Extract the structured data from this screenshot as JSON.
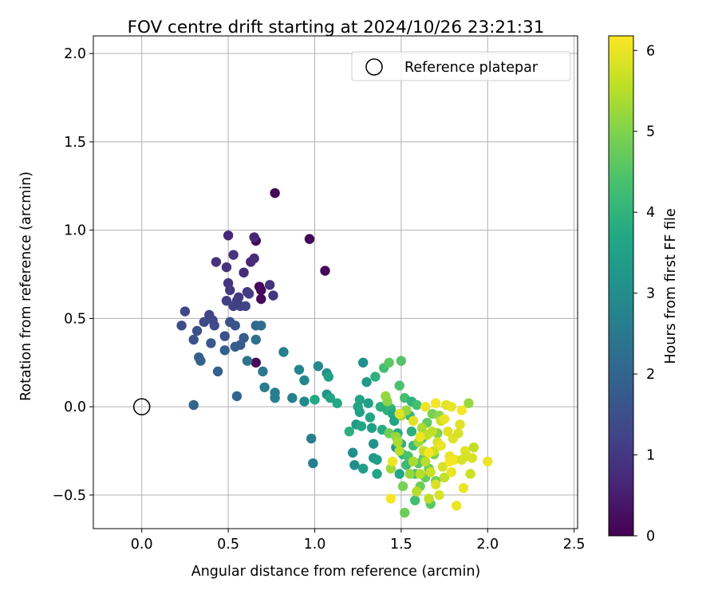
{
  "chart_data": {
    "type": "scatter",
    "title": "FOV centre drift starting at 2024/10/26 23:21:31",
    "xlabel": "Angular distance from reference (arcmin)",
    "ylabel": "Rotation from reference (arcmin)",
    "xlim": [
      -0.28,
      2.52
    ],
    "ylim": [
      -0.69,
      2.1
    ],
    "xticks": [
      0.0,
      0.5,
      1.0,
      1.5,
      2.0,
      2.5
    ],
    "xtick_labels": [
      "0.0",
      "0.5",
      "1.0",
      "1.5",
      "2.0",
      "2.5"
    ],
    "yticks": [
      -0.5,
      0.0,
      0.5,
      1.0,
      1.5,
      2.0
    ],
    "ytick_labels": [
      "−0.5",
      "0.0",
      "0.5",
      "1.0",
      "1.5",
      "2.0"
    ],
    "grid": true,
    "legend": {
      "placement": "top-right",
      "entries": [
        "Reference platepar"
      ]
    },
    "reference_point": {
      "x": 0.0,
      "y": 0.0,
      "marker": "open-circle"
    },
    "colorbar": {
      "label": "Hours from first FF file",
      "colormap": "viridis",
      "range": [
        0,
        6.18
      ],
      "ticks": [
        0,
        1,
        2,
        3,
        4,
        5,
        6
      ],
      "tick_labels": [
        "0",
        "1",
        "2",
        "3",
        "4",
        "5",
        "6"
      ]
    },
    "points": [
      [
        0.77,
        1.21,
        0.05
      ],
      [
        0.97,
        0.95,
        0.05
      ],
      [
        0.66,
        0.94,
        0.1
      ],
      [
        1.06,
        0.77,
        0.1
      ],
      [
        0.68,
        0.68,
        0.1
      ],
      [
        0.69,
        0.66,
        0.12
      ],
      [
        0.69,
        0.61,
        0.15
      ],
      [
        0.66,
        0.25,
        0.15
      ],
      [
        0.5,
        0.97,
        0.7
      ],
      [
        0.65,
        0.96,
        0.7
      ],
      [
        0.63,
        0.82,
        0.7
      ],
      [
        0.59,
        0.76,
        0.8
      ],
      [
        0.65,
        0.84,
        0.8
      ],
      [
        0.53,
        0.86,
        0.9
      ],
      [
        0.43,
        0.82,
        0.9
      ],
      [
        0.5,
        0.7,
        0.9
      ],
      [
        0.49,
        0.79,
        0.9
      ],
      [
        0.74,
        0.69,
        0.9
      ],
      [
        0.76,
        0.63,
        0.95
      ],
      [
        0.51,
        0.66,
        1.0
      ],
      [
        0.56,
        0.62,
        1.0
      ],
      [
        0.61,
        0.65,
        1.05
      ],
      [
        0.55,
        0.6,
        1.1
      ],
      [
        0.62,
        0.64,
        1.1
      ],
      [
        0.49,
        0.6,
        1.15
      ],
      [
        0.57,
        0.57,
        1.2
      ],
      [
        0.53,
        0.57,
        1.2
      ],
      [
        0.6,
        0.57,
        1.25
      ],
      [
        0.39,
        0.52,
        1.25
      ],
      [
        0.41,
        0.49,
        1.3
      ],
      [
        0.25,
        0.54,
        1.3
      ],
      [
        0.36,
        0.48,
        1.35
      ],
      [
        0.42,
        0.46,
        1.4
      ],
      [
        0.23,
        0.46,
        1.45
      ],
      [
        0.32,
        0.43,
        1.5
      ],
      [
        0.48,
        0.4,
        1.5
      ],
      [
        0.51,
        0.48,
        1.55
      ],
      [
        0.54,
        0.46,
        1.6
      ],
      [
        0.3,
        0.38,
        1.6
      ],
      [
        0.4,
        0.36,
        1.7
      ],
      [
        0.57,
        0.35,
        1.75
      ],
      [
        0.54,
        0.34,
        1.8
      ],
      [
        0.59,
        0.39,
        1.8
      ],
      [
        0.48,
        0.32,
        1.85
      ],
      [
        0.33,
        0.28,
        1.9
      ],
      [
        0.34,
        0.26,
        1.9
      ],
      [
        0.44,
        0.2,
        1.9
      ],
      [
        0.3,
        0.01,
        2.0
      ],
      [
        0.55,
        0.06,
        2.0
      ],
      [
        0.66,
        0.46,
        2.1
      ],
      [
        0.69,
        0.46,
        2.2
      ],
      [
        0.66,
        0.38,
        2.3
      ],
      [
        0.61,
        0.26,
        2.4
      ],
      [
        0.7,
        0.2,
        2.5
      ],
      [
        0.71,
        0.11,
        2.6
      ],
      [
        0.77,
        0.08,
        2.6
      ],
      [
        0.77,
        0.05,
        2.7
      ],
      [
        0.82,
        0.31,
        2.6
      ],
      [
        0.87,
        0.05,
        2.7
      ],
      [
        0.91,
        0.21,
        2.8
      ],
      [
        0.94,
        0.15,
        2.8
      ],
      [
        0.94,
        0.03,
        2.9
      ],
      [
        0.98,
        -0.18,
        2.6
      ],
      [
        0.99,
        -0.32,
        2.6
      ],
      [
        1.02,
        0.23,
        2.9
      ],
      [
        1.07,
        0.19,
        3.0
      ],
      [
        1.07,
        0.07,
        3.2
      ],
      [
        1.08,
        0.17,
        3.5
      ],
      [
        1.09,
        0.05,
        3.6
      ],
      [
        1.0,
        0.04,
        3.7
      ],
      [
        1.13,
        0.02,
        3.7
      ],
      [
        1.2,
        -0.14,
        3.9
      ],
      [
        1.22,
        -0.26,
        3.0
      ],
      [
        1.23,
        -0.33,
        3.0
      ],
      [
        1.24,
        -0.1,
        3.3
      ],
      [
        1.26,
        -0.03,
        3.5
      ],
      [
        1.26,
        0.04,
        3.6
      ],
      [
        1.25,
        0.0,
        3.6
      ],
      [
        1.27,
        -0.11,
        3.7
      ],
      [
        1.28,
        0.25,
        3.0
      ],
      [
        1.28,
        -0.35,
        3.4
      ],
      [
        1.3,
        0.14,
        3.3
      ],
      [
        1.31,
        0.02,
        3.5
      ],
      [
        1.32,
        -0.06,
        3.6
      ],
      [
        1.33,
        -0.12,
        3.5
      ],
      [
        1.34,
        -0.21,
        3.2
      ],
      [
        1.34,
        -0.29,
        3.3
      ],
      [
        1.36,
        -0.3,
        3.4
      ],
      [
        1.36,
        -0.38,
        3.6
      ],
      [
        1.35,
        0.17,
        3.9
      ],
      [
        1.38,
        0.0,
        3.9
      ],
      [
        1.39,
        -0.13,
        3.8
      ],
      [
        1.4,
        0.22,
        4.3
      ],
      [
        1.42,
        -0.02,
        3.9
      ],
      [
        1.43,
        0.25,
        4.6
      ],
      [
        1.44,
        -0.01,
        4.0
      ],
      [
        1.45,
        -0.04,
        3.7
      ],
      [
        1.46,
        -0.08,
        3.6
      ],
      [
        1.47,
        -0.23,
        3.4
      ],
      [
        1.48,
        -0.15,
        3.8
      ],
      [
        1.49,
        0.12,
        4.4
      ],
      [
        1.49,
        -0.38,
        3.7
      ],
      [
        1.5,
        0.26,
        4.5
      ],
      [
        1.5,
        -0.21,
        3.9
      ],
      [
        1.51,
        -0.27,
        4.0
      ],
      [
        1.52,
        0.05,
        4.3
      ],
      [
        1.53,
        -0.33,
        4.2
      ],
      [
        1.54,
        -0.28,
        4.4
      ],
      [
        1.55,
        -0.05,
        4.1
      ],
      [
        1.56,
        0.03,
        4.0
      ],
      [
        1.56,
        -0.14,
        3.9
      ],
      [
        1.57,
        -0.22,
        4.2
      ],
      [
        1.58,
        -0.38,
        4.3
      ],
      [
        1.58,
        -0.53,
        4.3
      ],
      [
        1.59,
        0.01,
        4.3
      ],
      [
        1.6,
        -0.32,
        4.5
      ],
      [
        1.61,
        -0.45,
        4.8
      ],
      [
        1.62,
        -0.18,
        4.4
      ],
      [
        1.63,
        -0.29,
        4.6
      ],
      [
        1.64,
        -0.4,
        4.7
      ],
      [
        1.65,
        -0.09,
        4.7
      ],
      [
        1.66,
        -0.35,
        4.8
      ],
      [
        1.67,
        -0.55,
        4.6
      ],
      [
        1.68,
        -0.04,
        4.9
      ],
      [
        1.69,
        -0.27,
        5.0
      ],
      [
        1.7,
        -0.42,
        4.9
      ],
      [
        1.71,
        -0.15,
        5.0
      ],
      [
        1.72,
        -0.05,
        5.1
      ],
      [
        1.41,
        0.06,
        5.2
      ],
      [
        1.42,
        0.03,
        5.1
      ],
      [
        1.43,
        -0.15,
        4.8
      ],
      [
        1.44,
        -0.35,
        5.3
      ],
      [
        1.47,
        -0.17,
        5.2
      ],
      [
        1.48,
        -0.2,
        5.4
      ],
      [
        1.49,
        -0.25,
        5.5
      ],
      [
        1.5,
        -0.05,
        5.3
      ],
      [
        1.51,
        -0.45,
        4.9
      ],
      [
        1.52,
        -0.6,
        4.8
      ],
      [
        1.53,
        -0.02,
        5.2
      ],
      [
        1.55,
        -0.38,
        5.2
      ],
      [
        1.57,
        -0.31,
        5.4
      ],
      [
        1.59,
        -0.48,
        5.5
      ],
      [
        1.6,
        -0.2,
        5.3
      ],
      [
        1.61,
        -0.38,
        5.5
      ],
      [
        1.62,
        -0.12,
        5.4
      ],
      [
        1.63,
        -0.25,
        5.6
      ],
      [
        1.64,
        -0.31,
        5.5
      ],
      [
        1.65,
        -0.16,
        5.6
      ],
      [
        1.66,
        -0.52,
        5.6
      ],
      [
        1.67,
        -0.37,
        5.7
      ],
      [
        1.68,
        -0.14,
        5.6
      ],
      [
        1.69,
        -0.25,
        5.7
      ],
      [
        1.7,
        -0.44,
        5.8
      ],
      [
        1.71,
        -0.2,
        5.8
      ],
      [
        1.72,
        -0.5,
        5.8
      ],
      [
        1.73,
        -0.08,
        5.7
      ],
      [
        1.74,
        -0.34,
        5.8
      ],
      [
        1.75,
        -0.4,
        5.6
      ],
      [
        1.76,
        0.01,
        5.9
      ],
      [
        1.77,
        -0.14,
        5.9
      ],
      [
        1.78,
        -0.28,
        6.0
      ],
      [
        1.79,
        -0.37,
        6.0
      ],
      [
        1.8,
        -0.18,
        5.9
      ],
      [
        1.81,
        -0.3,
        6.1
      ],
      [
        1.82,
        -0.56,
        6.0
      ],
      [
        1.83,
        -0.15,
        5.8
      ],
      [
        1.84,
        -0.1,
        5.9
      ],
      [
        1.85,
        -0.3,
        5.8
      ],
      [
        1.86,
        -0.46,
        6.0
      ],
      [
        1.87,
        -0.25,
        5.9
      ],
      [
        1.88,
        -0.28,
        5.8
      ],
      [
        1.89,
        0.02,
        5.2
      ],
      [
        1.9,
        -0.38,
        5.7
      ],
      [
        1.91,
        -0.29,
        5.8
      ],
      [
        1.92,
        -0.23,
        5.6
      ],
      [
        2.0,
        -0.31,
        6.0
      ],
      [
        1.85,
        -0.02,
        6.1
      ],
      [
        1.79,
        0.0,
        6.0
      ],
      [
        1.75,
        -0.07,
        6.0
      ],
      [
        1.7,
        0.02,
        6.1
      ],
      [
        1.64,
        0.0,
        6.0
      ],
      [
        1.57,
        -0.08,
        5.9
      ],
      [
        1.49,
        -0.04,
        5.9
      ],
      [
        1.45,
        -0.31,
        6.0
      ],
      [
        1.44,
        -0.52,
        6.1
      ],
      [
        1.66,
        -0.26,
        6.1
      ],
      [
        1.73,
        -0.22,
        6.0
      ],
      [
        1.78,
        -0.31,
        6.1
      ],
      [
        1.61,
        -0.17,
        6.0
      ]
    ]
  }
}
